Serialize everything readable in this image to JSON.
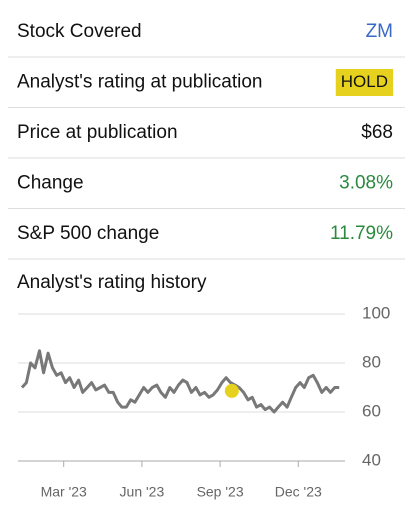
{
  "table": {
    "rows": [
      {
        "label": "Stock Covered",
        "value": "ZM",
        "color": "#3a68c8"
      },
      {
        "label": "Analyst's rating at publication",
        "value": "HOLD",
        "color": "#111111",
        "badge": "#e6d21e"
      },
      {
        "label": "Price at publication",
        "value": "$68",
        "color": "#111111"
      },
      {
        "label": "Change",
        "value": "3.08%",
        "color": "#2a8a3e"
      },
      {
        "label": "S&P 500 change",
        "value": "11.79%",
        "color": "#2a8a3e"
      }
    ]
  },
  "chart_data": {
    "type": "line",
    "title": "Analyst's rating history",
    "xlim": [
      1.4,
      13.6
    ],
    "ylim": [
      40,
      100
    ],
    "yticks": [
      40,
      60,
      80,
      100
    ],
    "grid": true,
    "xticks": [
      {
        "value": 3,
        "label": "Mar '23"
      },
      {
        "value": 6,
        "label": "Jun '23"
      },
      {
        "value": 9,
        "label": "Sep '23"
      },
      {
        "value": 12,
        "label": "Dec '23"
      }
    ],
    "series": [
      {
        "color": "#787878",
        "x": [
          1.4,
          1.57,
          1.73,
          1.9,
          2.07,
          2.23,
          2.4,
          2.57,
          2.73,
          2.9,
          3.07,
          3.23,
          3.4,
          3.57,
          3.73,
          3.9,
          4.07,
          4.23,
          4.4,
          4.57,
          4.73,
          4.9,
          5.07,
          5.23,
          5.4,
          5.57,
          5.73,
          5.9,
          6.07,
          6.23,
          6.4,
          6.57,
          6.73,
          6.9,
          7.07,
          7.23,
          7.4,
          7.57,
          7.73,
          7.9,
          8.07,
          8.23,
          8.4,
          8.57,
          8.73,
          8.9,
          9.07,
          9.23,
          9.4,
          9.57,
          9.73,
          9.9,
          10.07,
          10.23,
          10.4,
          10.57,
          10.73,
          10.9,
          11.07,
          11.23,
          11.4,
          11.57,
          11.73,
          11.9,
          12.07,
          12.23,
          12.4,
          12.57,
          12.73,
          12.9,
          13.07,
          13.23,
          13.4,
          13.57
        ],
        "values": [
          70,
          72,
          80,
          78,
          85,
          76,
          84,
          78,
          75,
          76,
          72,
          74,
          70,
          73,
          68,
          70,
          72,
          69,
          70,
          71,
          68,
          68,
          64,
          62,
          62,
          65,
          64,
          67,
          70,
          68,
          70,
          71,
          68,
          66,
          70,
          68,
          71,
          73,
          72,
          68,
          70,
          67,
          68,
          66,
          67,
          69,
          72,
          74,
          72,
          71,
          70,
          68,
          65,
          66,
          62,
          63,
          61,
          62,
          60,
          62,
          64,
          62,
          66,
          70,
          72,
          70,
          74,
          75,
          72,
          68,
          70,
          68,
          70,
          70
        ]
      }
    ],
    "highlight": {
      "x": 9.45,
      "y": 68.6,
      "color": "#e6d21e"
    }
  }
}
